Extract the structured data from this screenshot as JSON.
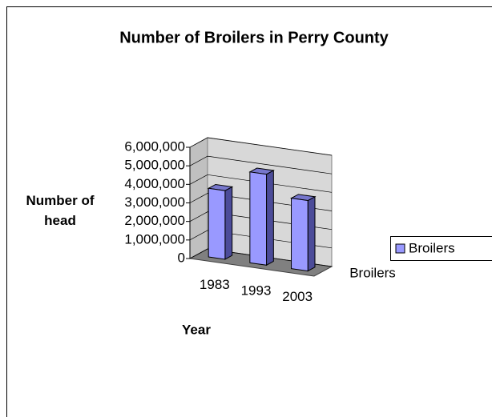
{
  "chart_data": {
    "type": "bar3d",
    "title": "Number of Broilers in Perry County",
    "y_label": "Number of head",
    "x_label": "Year",
    "categories": [
      "1983",
      "1993",
      "2003"
    ],
    "series": [
      {
        "name": "Broilers",
        "color": "#9999ff",
        "values": [
          3700000,
          4900000,
          3800000
        ]
      }
    ],
    "ylim": [
      0,
      6000000
    ],
    "yticks": [
      0,
      {
        "value": 1000000,
        "label": "1,000,000"
      },
      {
        "value": 2000000,
        "label": "2,000,000"
      },
      {
        "value": 3000000,
        "label": "3,000,000"
      },
      {
        "value": 4000000,
        "label": "4,000,000"
      },
      {
        "value": 5000000,
        "label": "5,000,000"
      },
      {
        "value": 6000000,
        "label": "6,000,000"
      }
    ],
    "grid": true,
    "legend": "right"
  }
}
